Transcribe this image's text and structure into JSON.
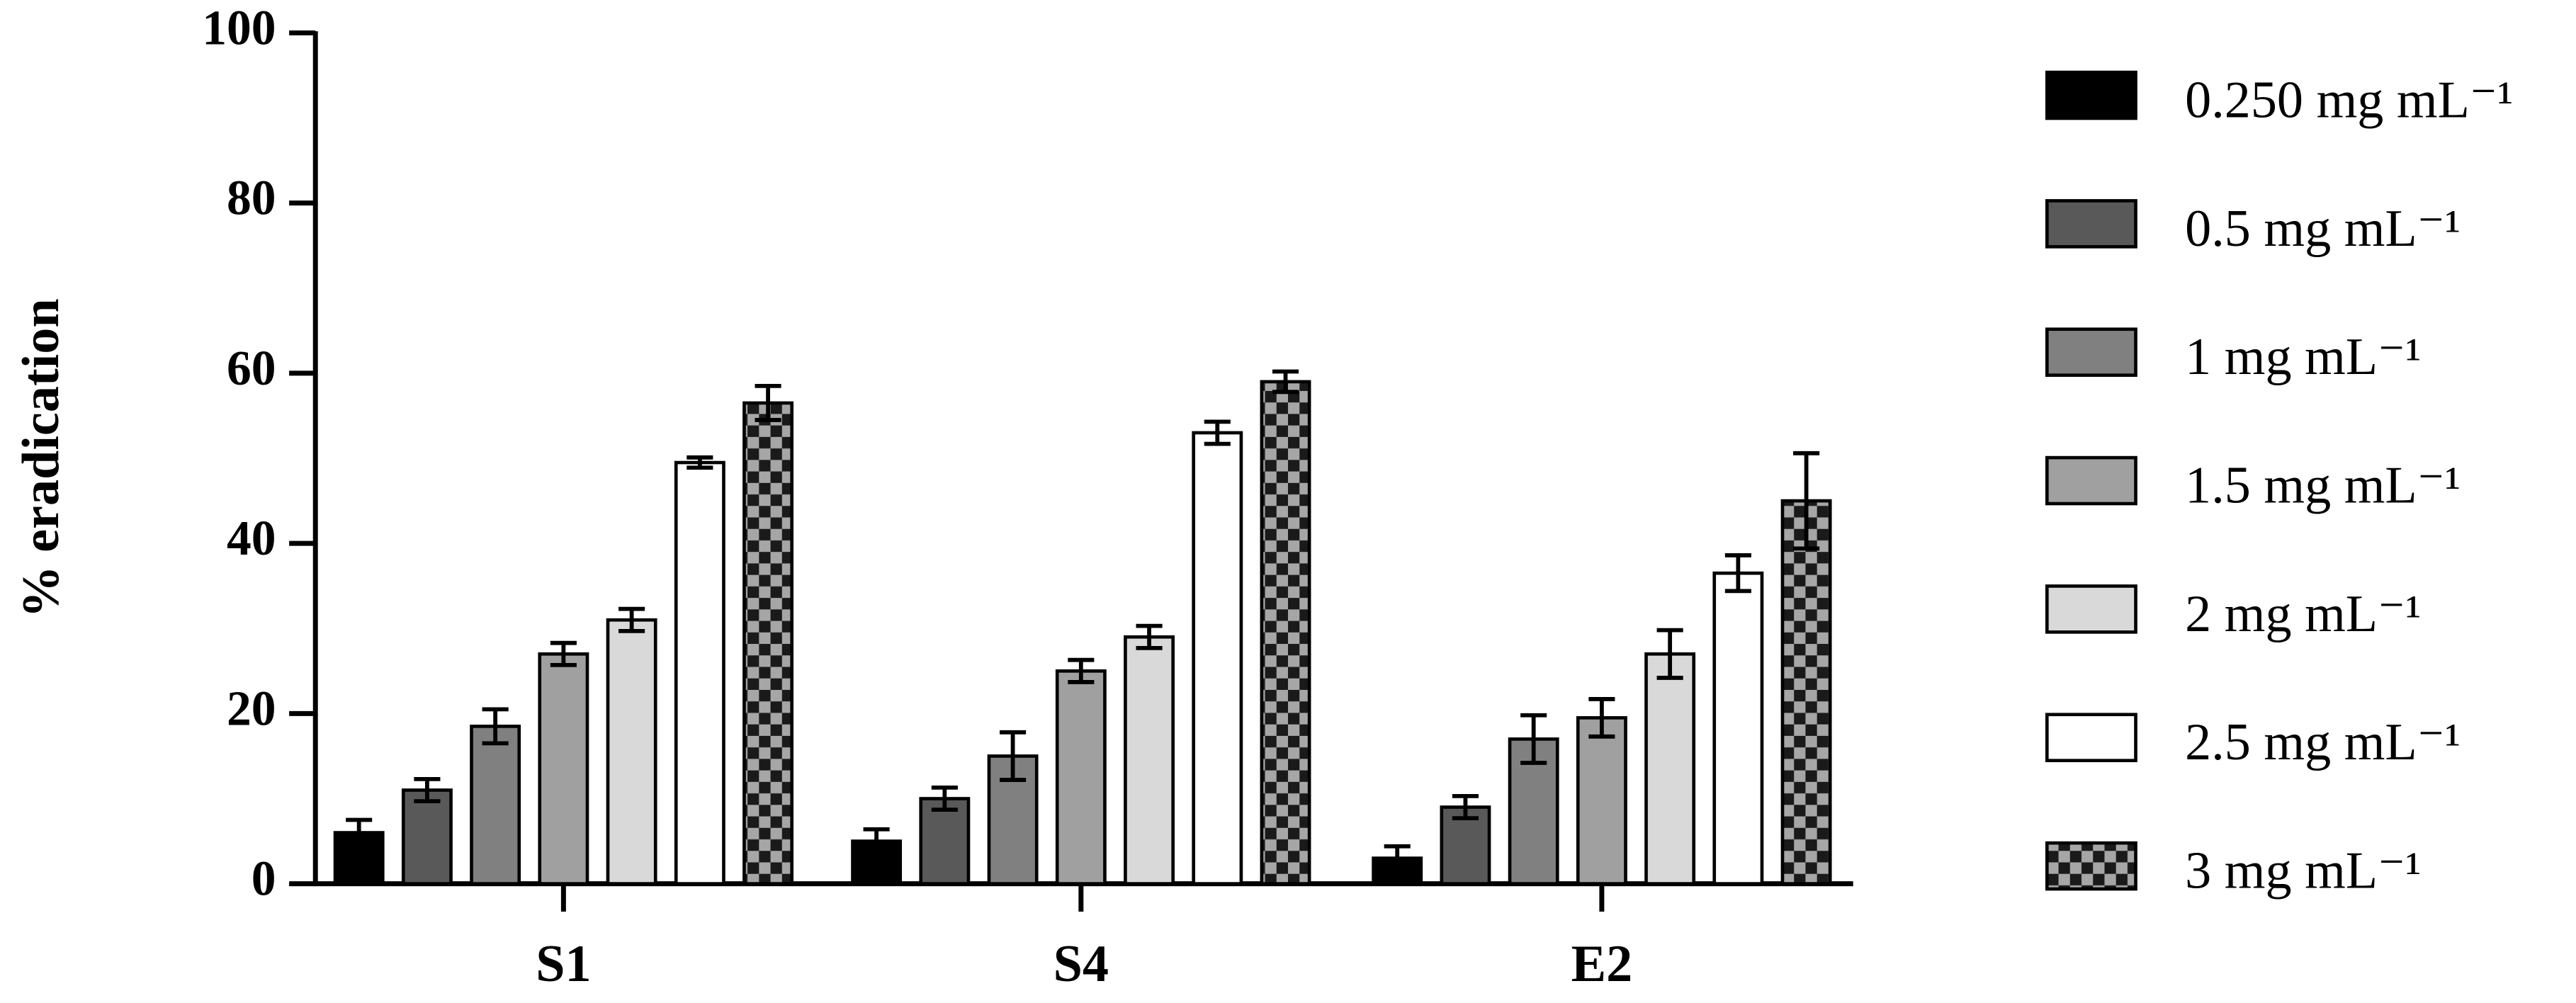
{
  "chart_data": {
    "type": "bar",
    "y_label": "% eradication",
    "categories": [
      "S1",
      "S4",
      "E2"
    ],
    "ylim": [
      0,
      100
    ],
    "yticks": [
      0,
      20,
      40,
      60,
      80,
      100
    ],
    "series": [
      {
        "name": "0.250 mg mL⁻¹",
        "color": "#000000",
        "values": [
          6,
          5,
          3
        ],
        "errors": [
          1.5,
          1.4,
          1.4
        ]
      },
      {
        "name": "0.5 mg mL⁻¹",
        "color": "#595959",
        "values": [
          11,
          10,
          9
        ],
        "errors": [
          1.3,
          1.3,
          1.3
        ]
      },
      {
        "name": "1 mg mL⁻¹",
        "color": "#808080",
        "values": [
          18.5,
          15,
          17
        ],
        "errors": [
          2,
          2.8,
          2.8
        ]
      },
      {
        "name": "1.5 mg mL⁻¹",
        "color": "#a0a0a0",
        "values": [
          27,
          25,
          19.5
        ],
        "errors": [
          1.3,
          1.3,
          2.2
        ]
      },
      {
        "name": "2 mg mL⁻¹",
        "color": "#d9d9d9",
        "values": [
          31,
          29,
          27
        ],
        "errors": [
          1.3,
          1.3,
          2.8
        ]
      },
      {
        "name": "2.5 mg mL⁻¹",
        "color": "#ffffff",
        "values": [
          49.5,
          53,
          36.5
        ],
        "errors": [
          0.6,
          1.3,
          2.1
        ]
      },
      {
        "name": "3 mg mL⁻¹",
        "color": "#a6a6a6",
        "pattern": "checker",
        "values": [
          56.5,
          59,
          45
        ],
        "errors": [
          2,
          1.2,
          5.6
        ]
      }
    ]
  }
}
